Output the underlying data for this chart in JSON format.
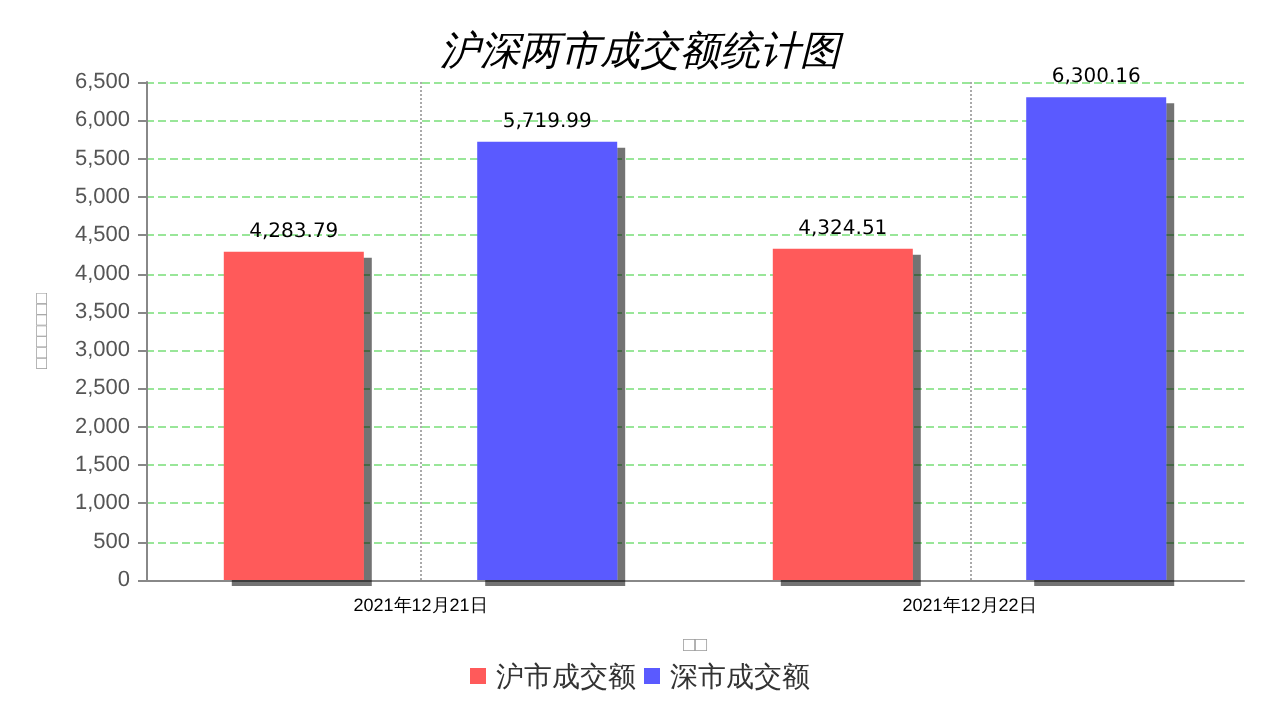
{
  "chart_data": {
    "type": "bar",
    "title": "沪深两市成交额统计图",
    "xlabel": "□□",
    "ylabel": "□□□□□□□",
    "categories": [
      "2021年12月21日",
      "2021年12月22日"
    ],
    "series": [
      {
        "name": "沪市成交额",
        "color": "#ff5a5a",
        "values": [
          4283.79,
          4324.51
        ],
        "value_labels": [
          "4,283.79",
          "4,324.51"
        ]
      },
      {
        "name": "深市成交额",
        "color": "#5a5aff",
        "values": [
          5719.99,
          6300.16
        ],
        "value_labels": [
          "5,719.99",
          "6,300.16"
        ]
      }
    ],
    "ylim": [
      0,
      6500
    ],
    "yticks": [
      0,
      500,
      {
        "value": 1000,
        "label": "1,000"
      },
      {
        "value": 1500,
        "label": "1,500"
      },
      {
        "value": 2000,
        "label": "2,000"
      },
      {
        "value": 2500,
        "label": "2,500"
      },
      {
        "value": 3000,
        "label": "3,000"
      },
      {
        "value": 3500,
        "label": "3,500"
      },
      {
        "value": 4000,
        "label": "4,000"
      },
      {
        "value": 4500,
        "label": "4,500"
      },
      {
        "value": 5000,
        "label": "5,000"
      },
      {
        "value": 5500,
        "label": "5,500"
      },
      {
        "value": 6000,
        "label": "6,000"
      },
      {
        "value": 6500,
        "label": "6,500"
      }
    ],
    "grid": true,
    "legend": "bottom"
  }
}
